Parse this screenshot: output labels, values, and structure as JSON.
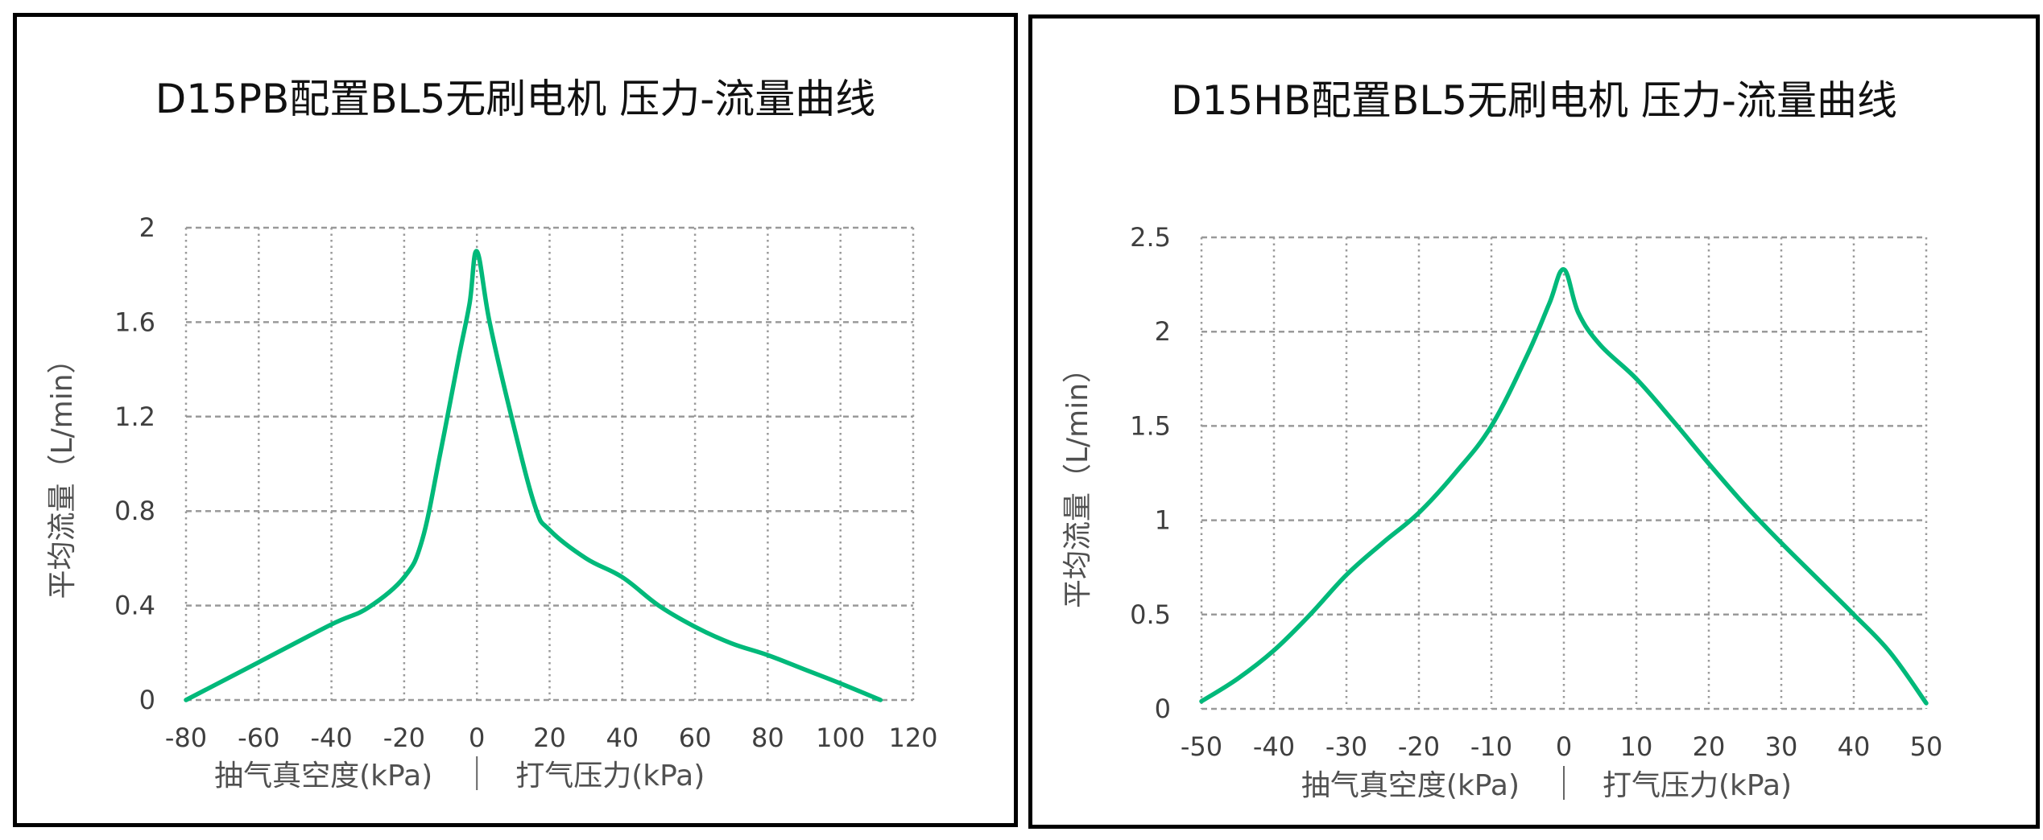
{
  "colors": {
    "curve": "#00B97A",
    "grid": "#9a9a9a",
    "text": "#3f3f3f",
    "border": "#000000"
  },
  "charts": [
    {
      "title": "D15PB配置BL5无刷电机 压力-流量曲线",
      "ylabel": "平均流量（L/min）",
      "xlabel_left": "抽气真空度(kPa)",
      "xlabel_sep": "｜",
      "xlabel_right": "打气压力(kPa)"
    },
    {
      "title": "D15HB配置BL5无刷电机 压力-流量曲线",
      "ylabel": "平均流量（L/min）",
      "xlabel_left": "抽气真空度(kPa)",
      "xlabel_sep": "｜",
      "xlabel_right": "打气压力(kPa)"
    }
  ],
  "chart_data": [
    {
      "type": "line",
      "title": "D15PB配置BL5无刷电机 压力-流量曲线",
      "xlabel": "抽气真空度(kPa) ｜ 打气压力(kPa)",
      "ylabel": "平均流量（L/min）",
      "xlim": [
        -80,
        120
      ],
      "ylim": [
        0,
        2
      ],
      "xticks": [
        -80,
        -60,
        -40,
        -20,
        0,
        20,
        40,
        60,
        80,
        100,
        120
      ],
      "yticks": [
        0,
        0.4,
        0.8,
        1.2,
        1.6,
        2
      ],
      "ytick_labels": [
        "0",
        "0.4",
        "0.8",
        "1.2",
        "1.6",
        "2"
      ],
      "grid": true,
      "legend": null,
      "series": [
        {
          "name": "D15PB",
          "x": [
            -80,
            -60,
            -40,
            -30,
            -20,
            -15,
            -10,
            -5,
            -2,
            0,
            3.5,
            9.5,
            16,
            20,
            30,
            40,
            50,
            60,
            70,
            80,
            90,
            100,
            111
          ],
          "y": [
            0,
            0.16,
            0.32,
            0.39,
            0.52,
            0.68,
            1.05,
            1.45,
            1.68,
            1.9,
            1.6,
            1.2,
            0.82,
            0.72,
            0.6,
            0.52,
            0.4,
            0.31,
            0.24,
            0.19,
            0.13,
            0.07,
            0
          ]
        }
      ]
    },
    {
      "type": "line",
      "title": "D15HB配置BL5无刷电机 压力-流量曲线",
      "xlabel": "抽气真空度(kPa) ｜ 打气压力(kPa)",
      "ylabel": "平均流量（L/min）",
      "xlim": [
        -50,
        50
      ],
      "ylim": [
        0,
        2.5
      ],
      "xticks": [
        -50,
        -40,
        -30,
        -20,
        -10,
        0,
        10,
        20,
        30,
        40,
        50
      ],
      "yticks": [
        0,
        0.5,
        1,
        1.5,
        2,
        2.5
      ],
      "ytick_labels": [
        "0",
        "0.5",
        "1",
        "1.5",
        "2",
        "2.5"
      ],
      "grid": true,
      "legend": null,
      "series": [
        {
          "name": "D15HB",
          "x": [
            -50,
            -45,
            -40,
            -35,
            -30,
            -25,
            -20,
            -15,
            -10,
            -5,
            -2,
            0,
            2,
            5,
            10,
            15,
            20,
            25,
            30,
            35,
            40,
            45,
            50
          ],
          "y": [
            0.04,
            0.16,
            0.31,
            0.5,
            0.71,
            0.88,
            1.04,
            1.25,
            1.5,
            1.88,
            2.15,
            2.33,
            2.1,
            1.93,
            1.75,
            1.53,
            1.3,
            1.08,
            0.88,
            0.69,
            0.5,
            0.3,
            0.03
          ]
        }
      ]
    }
  ]
}
